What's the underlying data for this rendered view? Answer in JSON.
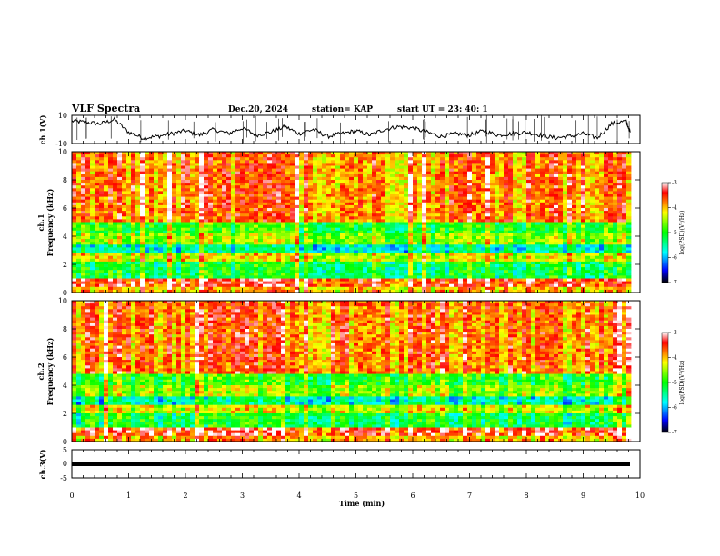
{
  "header": {
    "title": "VLF Spectra",
    "date": "Dec.20, 2024",
    "station": "station= KAP",
    "start": "start  UT  =   23: 40: 1"
  },
  "chart_data": [
    {
      "type": "line",
      "name": "ch1-waveform",
      "ylabel": "ch.1(V)",
      "ylim": [
        -10,
        10
      ],
      "yticks": [
        "10",
        "-10"
      ],
      "xlim": [
        0,
        9.83
      ],
      "x": [
        0,
        0.25,
        0.5,
        0.75,
        1,
        1.25,
        1.5,
        1.75,
        2,
        2.25,
        2.5,
        2.75,
        3,
        3.25,
        3.5,
        3.75,
        4,
        4.25,
        4.5,
        4.75,
        5,
        5.25,
        5.5,
        5.75,
        6,
        6.25,
        6.5,
        6.75,
        7,
        7.25,
        7.5,
        7.75,
        8,
        8.25,
        8.5,
        8.75,
        9,
        9.25,
        9.5,
        9.75,
        9.83
      ],
      "y": [
        6,
        5,
        4,
        7,
        -2,
        -6,
        -5,
        -3,
        -1,
        -4,
        0,
        -3,
        1,
        -4,
        -2,
        2,
        -3,
        0,
        -5,
        -3,
        -1,
        -4,
        0,
        2,
        1,
        -2,
        -5,
        -3,
        -4,
        -1,
        -4,
        -3,
        -2,
        -4,
        -6,
        -5,
        -3,
        -6,
        4,
        6,
        -2
      ]
    },
    {
      "type": "heatmap",
      "name": "ch1-spectrogram",
      "ylabel": "ch.1\nFrequency  (kHz)",
      "ylim": [
        0,
        10
      ],
      "yticks": [
        "0",
        "2",
        "4",
        "6",
        "8",
        "10"
      ],
      "xlim": [
        0,
        10
      ],
      "bands_khz": [
        {
          "from": 0,
          "to": 0.4,
          "level": -4.0
        },
        {
          "from": 0.4,
          "to": 1.0,
          "level": -3.5
        },
        {
          "from": 1.0,
          "to": 2.2,
          "level": -5.2
        },
        {
          "from": 2.2,
          "to": 2.8,
          "level": -4.3
        },
        {
          "from": 2.8,
          "to": 3.5,
          "level": -5.6
        },
        {
          "from": 3.5,
          "to": 4.2,
          "level": -4.6
        },
        {
          "from": 4.2,
          "to": 5.0,
          "level": -5.0
        },
        {
          "from": 5.0,
          "to": 10.0,
          "level": -3.8
        }
      ],
      "colorbar": {
        "label": "log(PSD)(V²/Hz)",
        "range": [
          -7,
          -3
        ],
        "ticks": [
          "-3",
          "-4",
          "-5",
          "-6",
          "-7"
        ]
      }
    },
    {
      "type": "heatmap",
      "name": "ch2-spectrogram",
      "ylabel": "ch.2\nFrequency  (kHz)",
      "ylim": [
        0,
        10
      ],
      "yticks": [
        "0",
        "2",
        "4",
        "6",
        "8",
        "10"
      ],
      "xlim": [
        0,
        10
      ],
      "bands_khz": [
        {
          "from": 0,
          "to": 0.4,
          "level": -4.0
        },
        {
          "from": 0.4,
          "to": 1.0,
          "level": -3.5
        },
        {
          "from": 1.0,
          "to": 2.0,
          "level": -5.2
        },
        {
          "from": 2.0,
          "to": 2.6,
          "level": -4.4
        },
        {
          "from": 2.6,
          "to": 3.3,
          "level": -5.6
        },
        {
          "from": 3.3,
          "to": 4.0,
          "level": -4.6
        },
        {
          "from": 4.0,
          "to": 4.8,
          "level": -5.0
        },
        {
          "from": 4.8,
          "to": 10.0,
          "level": -3.8
        }
      ],
      "colorbar": {
        "label": "log(PSD)(V²/Hz)",
        "range": [
          -7,
          -3
        ],
        "ticks": [
          "-3",
          "-4",
          "-5",
          "-6",
          "-7"
        ]
      }
    },
    {
      "type": "line",
      "name": "ch3-waveform",
      "ylabel": "ch.3(V)",
      "ylim": [
        -5,
        5
      ],
      "yticks": [
        "5",
        "0",
        "-5"
      ],
      "xlim": [
        0,
        9.83
      ],
      "x": [
        0,
        9.83
      ],
      "y": [
        0,
        0
      ]
    }
  ],
  "xaxis": {
    "label": "Time  (min)",
    "ticks": [
      "0",
      "1",
      "2",
      "3",
      "4",
      "5",
      "6",
      "7",
      "8",
      "9",
      "10"
    ],
    "range": [
      0,
      10
    ]
  },
  "colors": {
    "colormap": [
      "#000000",
      "#0000ff",
      "#00ffff",
      "#00ff00",
      "#ffff00",
      "#ff0000",
      "#ffffff"
    ]
  }
}
